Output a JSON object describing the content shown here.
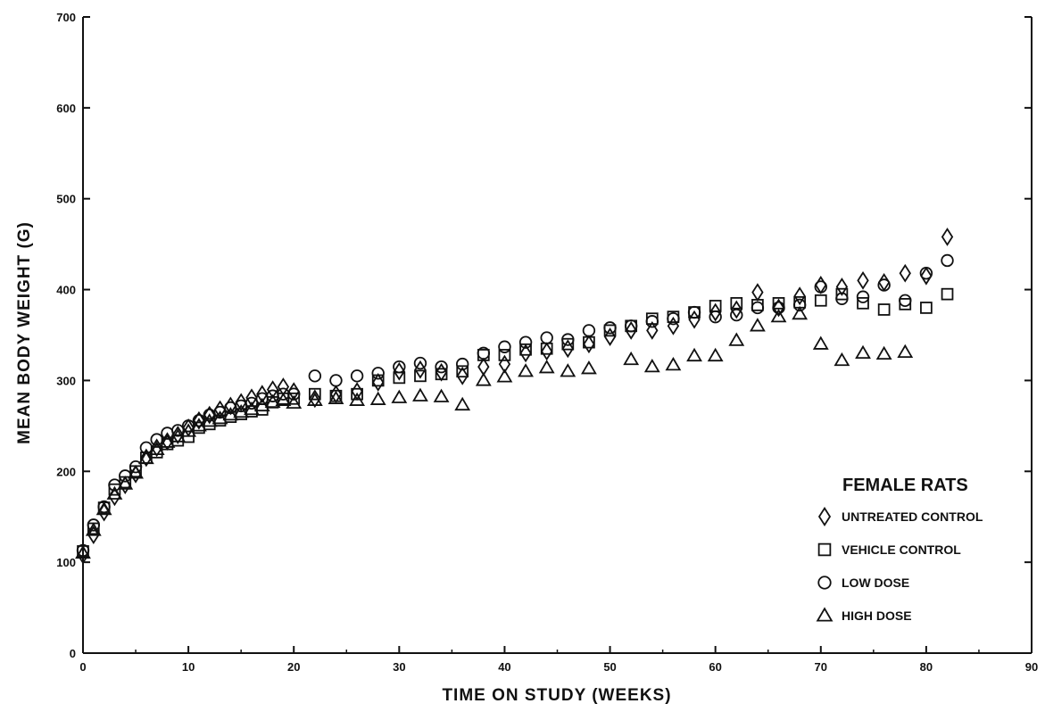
{
  "chart_data": {
    "type": "scatter",
    "xlabel": "TIME ON STUDY (WEEKS)",
    "ylabel": "MEAN BODY WEIGHT (G)",
    "xlim": [
      0,
      90
    ],
    "ylim": [
      0,
      700
    ],
    "xticks": [
      0,
      10,
      20,
      30,
      40,
      50,
      60,
      70,
      80,
      90
    ],
    "yticks": [
      0,
      100,
      200,
      300,
      400,
      500,
      600,
      700
    ],
    "grid": false,
    "legend": {
      "title": "FEMALE RATS",
      "placement": "bottom-right"
    },
    "series": [
      {
        "name": "UNTREATED CONTROL",
        "marker": "diamond",
        "x": [
          0,
          1,
          2,
          3,
          4,
          5,
          6,
          7,
          8,
          9,
          10,
          11,
          12,
          13,
          14,
          15,
          16,
          17,
          18,
          19,
          20,
          22,
          24,
          26,
          28,
          30,
          32,
          34,
          36,
          38,
          40,
          42,
          44,
          46,
          48,
          50,
          52,
          54,
          56,
          58,
          60,
          62,
          64,
          66,
          68,
          70,
          72,
          74,
          76,
          78,
          80,
          82
        ],
        "y": [
          108,
          130,
          155,
          172,
          185,
          197,
          215,
          226,
          233,
          240,
          248,
          256,
          262,
          268,
          272,
          276,
          281,
          285,
          290,
          293,
          288,
          280,
          285,
          288,
          298,
          310,
          312,
          309,
          305,
          315,
          318,
          330,
          332,
          335,
          340,
          348,
          355,
          355,
          360,
          367,
          375,
          378,
          397,
          380,
          393,
          405,
          403,
          410,
          408,
          418,
          415,
          458
        ]
      },
      {
        "name": "VEHICLE CONTROL",
        "marker": "square",
        "x": [
          0,
          1,
          2,
          3,
          4,
          5,
          6,
          7,
          8,
          9,
          10,
          11,
          12,
          13,
          14,
          15,
          16,
          17,
          18,
          19,
          20,
          22,
          24,
          26,
          28,
          30,
          32,
          34,
          36,
          38,
          40,
          42,
          44,
          46,
          48,
          50,
          52,
          54,
          56,
          58,
          60,
          62,
          64,
          66,
          68,
          70,
          72,
          74,
          76,
          78,
          80,
          82
        ],
        "y": [
          112,
          137,
          160,
          180,
          188,
          200,
          215,
          221,
          230,
          234,
          238,
          248,
          252,
          256,
          260,
          263,
          266,
          268,
          276,
          280,
          280,
          285,
          283,
          285,
          300,
          303,
          305,
          307,
          310,
          328,
          328,
          334,
          335,
          340,
          342,
          355,
          360,
          368,
          370,
          375,
          382,
          385,
          383,
          385,
          386,
          388,
          395,
          385,
          378,
          384,
          380,
          395
        ]
      },
      {
        "name": "LOW DOSE",
        "marker": "circle",
        "x": [
          0,
          1,
          2,
          3,
          4,
          5,
          6,
          7,
          8,
          9,
          10,
          11,
          12,
          13,
          14,
          15,
          16,
          17,
          18,
          19,
          20,
          22,
          24,
          26,
          28,
          30,
          32,
          34,
          36,
          38,
          40,
          42,
          44,
          46,
          48,
          50,
          52,
          54,
          56,
          58,
          60,
          62,
          64,
          66,
          68,
          70,
          72,
          74,
          76,
          78,
          80,
          82
        ],
        "y": [
          113,
          141,
          161,
          185,
          195,
          205,
          226,
          235,
          242,
          245,
          250,
          256,
          262,
          265,
          270,
          272,
          275,
          280,
          283,
          285,
          285,
          305,
          300,
          305,
          308,
          315,
          319,
          315,
          318,
          330,
          337,
          342,
          347,
          345,
          355,
          358,
          360,
          365,
          368,
          375,
          370,
          372,
          380,
          380,
          383,
          403,
          390,
          392,
          405,
          388,
          418,
          432
        ]
      },
      {
        "name": "HIGH DOSE",
        "marker": "triangle",
        "x": [
          0,
          1,
          2,
          3,
          4,
          5,
          6,
          7,
          8,
          9,
          10,
          11,
          12,
          13,
          14,
          15,
          16,
          17,
          18,
          19,
          20,
          22,
          24,
          26,
          28,
          30,
          32,
          34,
          36,
          38,
          40,
          42,
          44,
          46,
          48,
          52,
          54,
          56,
          58,
          60,
          62,
          64,
          66,
          68,
          70,
          72,
          74,
          76,
          78
        ],
        "y": [
          110,
          135,
          158,
          175,
          186,
          198,
          214,
          224,
          232,
          238,
          244,
          250,
          255,
          258,
          262,
          265,
          268,
          272,
          276,
          278,
          275,
          278,
          280,
          278,
          279,
          281,
          283,
          282,
          273,
          300,
          304,
          310,
          314,
          310,
          313,
          323,
          315,
          317,
          327,
          327,
          344,
          360,
          370,
          373,
          340,
          322,
          330,
          329,
          331
        ]
      }
    ]
  }
}
